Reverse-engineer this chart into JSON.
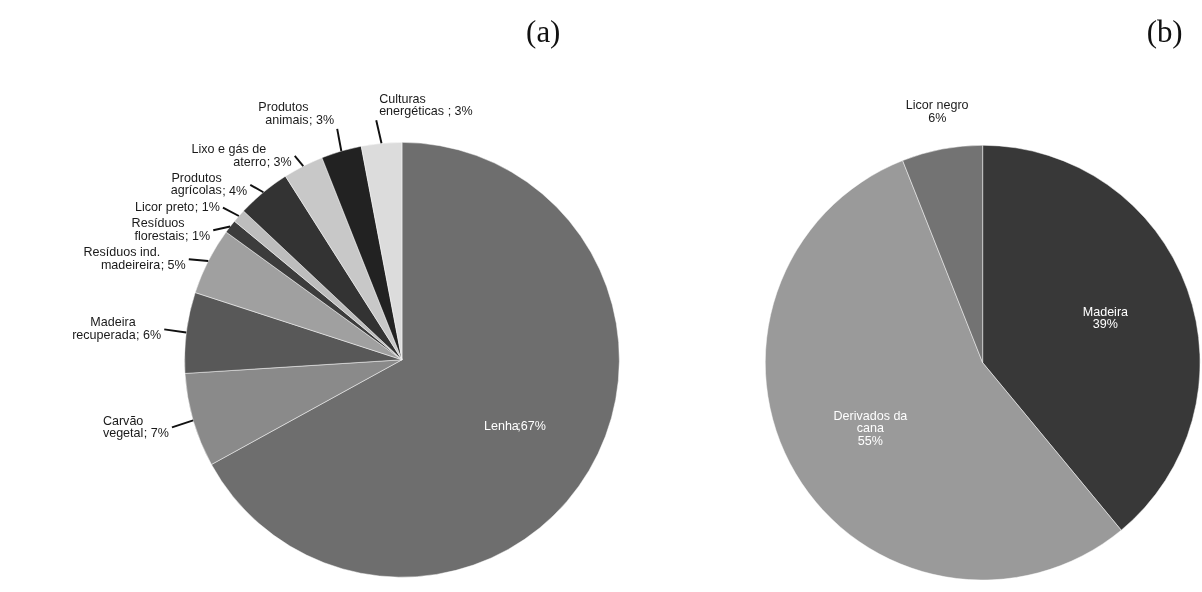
{
  "chart_data": [
    {
      "type": "pie",
      "title": "(a)",
      "categories": [
        "Lenha",
        "Carvão vegetal",
        "Madeira recuperada",
        "Resíduos ind. madeireira",
        "Resíduos florestais",
        "Licor preto",
        "Produtos agrícolas",
        "Lixo e gás de aterro",
        "Produtos animais",
        "Culturas energéticas"
      ],
      "values": [
        67,
        7,
        6,
        5,
        1,
        1,
        4,
        3,
        3,
        3
      ],
      "colors": [
        "#6e6e6e",
        "#8a8a8a",
        "#585858",
        "#a0a0a0",
        "#3c3c3c",
        "#bdbdbd",
        "#333333",
        "#c8c8c8",
        "#222222",
        "#dcdcdc"
      ],
      "value_labels": [
        ";67%",
        "; 7%",
        "; 6%",
        "; 5%",
        "; 1%",
        "; 1%",
        "; 4%",
        "; 3%",
        "; 3%",
        "; 3%"
      ]
    },
    {
      "type": "pie",
      "title": "(b)",
      "categories": [
        "Madeira",
        "Derivados da cana",
        "Licor negro"
      ],
      "values": [
        39,
        55,
        6
      ],
      "colors": [
        "#383838",
        "#9a9a9a",
        "#737373"
      ],
      "value_labels": [
        "39%",
        "55%",
        "6%"
      ]
    }
  ]
}
